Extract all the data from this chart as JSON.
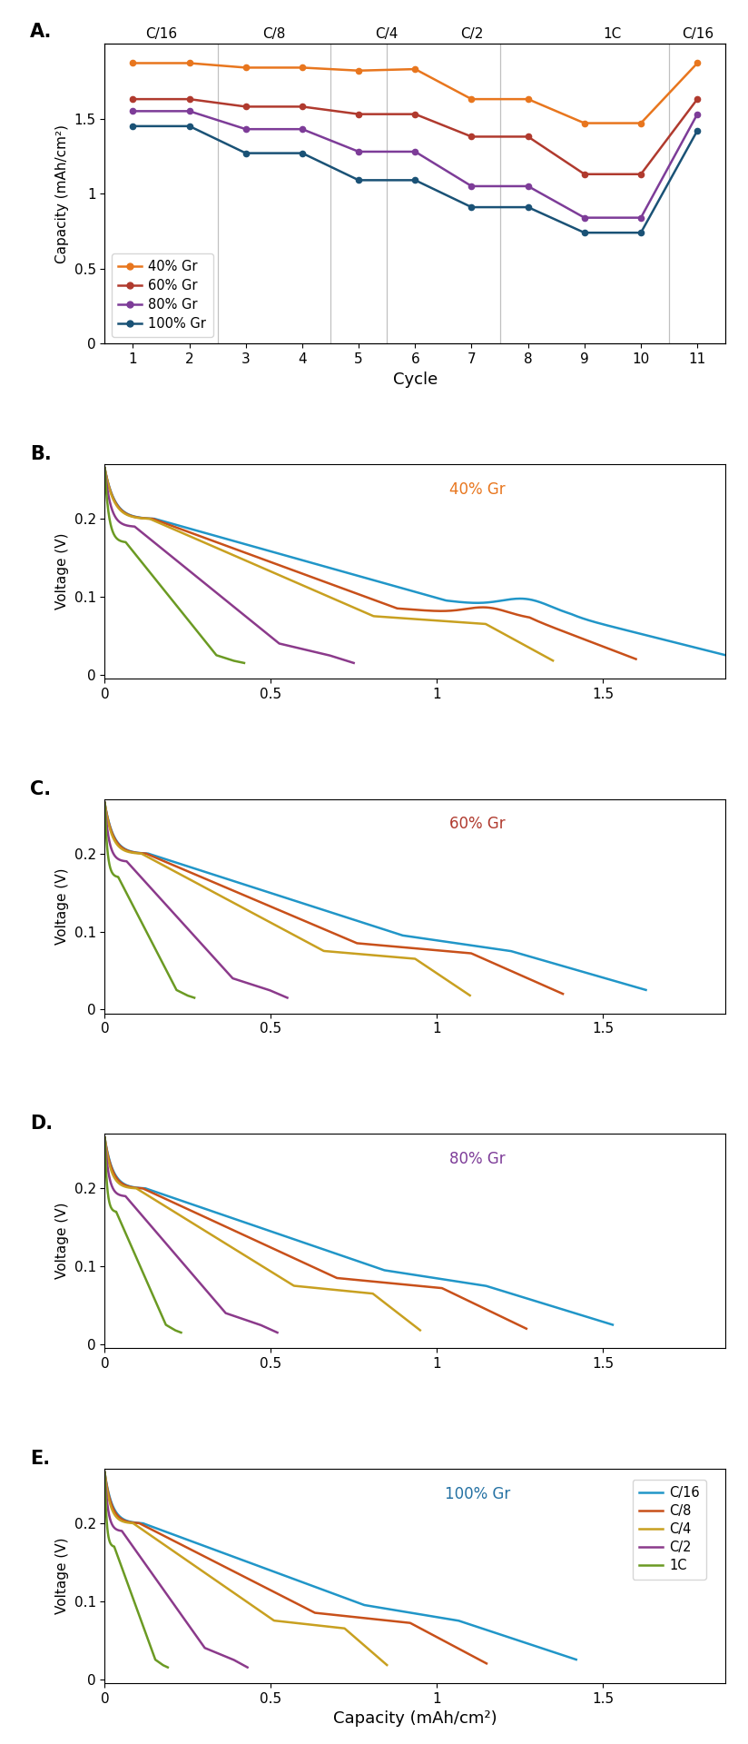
{
  "panel_A": {
    "cycles": [
      1,
      2,
      3,
      4,
      5,
      6,
      7,
      8,
      9,
      10,
      11
    ],
    "rate_labels": [
      "C/16",
      "C/8",
      "C/4",
      "C/2",
      "1C",
      "C/16"
    ],
    "rate_x": [
      1.5,
      3.5,
      5.5,
      7.0,
      9.5,
      11.0
    ],
    "vlines": [
      2.5,
      4.5,
      5.5,
      7.5,
      10.5
    ],
    "series": {
      "40% Gr": {
        "color": "#E8761E",
        "values": [
          1.87,
          1.87,
          1.84,
          1.84,
          1.82,
          1.83,
          1.63,
          1.63,
          1.47,
          1.47,
          1.87
        ]
      },
      "60% Gr": {
        "color": "#B03A2E",
        "values": [
          1.63,
          1.63,
          1.58,
          1.58,
          1.53,
          1.53,
          1.38,
          1.38,
          1.13,
          1.13,
          1.63
        ]
      },
      "80% Gr": {
        "color": "#7D3C98",
        "values": [
          1.55,
          1.55,
          1.43,
          1.43,
          1.28,
          1.28,
          1.05,
          1.05,
          0.84,
          0.84,
          1.53
        ]
      },
      "100% Gr": {
        "color": "#1A5276",
        "values": [
          1.45,
          1.45,
          1.27,
          1.27,
          1.09,
          1.09,
          0.91,
          0.91,
          0.74,
          0.74,
          1.42
        ]
      }
    },
    "ylim": [
      0,
      2.0
    ],
    "yticks": [
      0,
      0.5,
      1.0,
      1.5
    ],
    "ytick_labels": [
      "0",
      "0.5",
      "1",
      "1.5"
    ],
    "ylabel": "Capacity (mAh/cm²)",
    "xlabel": "Cycle",
    "xlim": [
      0.5,
      11.5
    ],
    "xticks": [
      1,
      2,
      3,
      4,
      5,
      6,
      7,
      8,
      9,
      10,
      11
    ]
  },
  "panels_BCDE": {
    "labels": [
      "B.",
      "C.",
      "D.",
      "E."
    ],
    "titles": [
      "40% Gr",
      "60% Gr",
      "80% Gr",
      "100% Gr"
    ],
    "title_colors": [
      "#E8761E",
      "#B03A2E",
      "#7D3C98",
      "#2471A3"
    ],
    "ylabel": "Voltage (V)",
    "xlabel": "Capacity (mAh/cm²)",
    "xlim": [
      0,
      1.87
    ],
    "ylim": [
      -0.005,
      0.27
    ],
    "yticks": [
      0,
      0.1,
      0.2
    ],
    "xticks": [
      0,
      0.5,
      1.0,
      1.5
    ],
    "xtick_labels": [
      "0",
      "0.5",
      "1",
      "1.5"
    ],
    "rate_colors": {
      "C/16": "#2196C8",
      "C/8": "#C8501A",
      "C/4": "#C8A020",
      "C/2": "#8B3A8B",
      "1C": "#6B9A23"
    },
    "rate_order": [
      "C/16",
      "C/8",
      "C/4",
      "C/2",
      "1C"
    ],
    "x_ends": {
      "40% Gr": {
        "C/16": 1.87,
        "C/8": 1.6,
        "C/4": 1.35,
        "C/2": 0.75,
        "1C": 0.42
      },
      "60% Gr": {
        "C/16": 1.63,
        "C/8": 1.38,
        "C/4": 1.1,
        "C/2": 0.55,
        "1C": 0.27
      },
      "80% Gr": {
        "C/16": 1.53,
        "C/8": 1.27,
        "C/4": 0.95,
        "C/2": 0.52,
        "1C": 0.23
      },
      "100% Gr": {
        "C/16": 1.42,
        "C/8": 1.15,
        "C/4": 0.85,
        "C/2": 0.43,
        "1C": 0.19
      }
    }
  }
}
